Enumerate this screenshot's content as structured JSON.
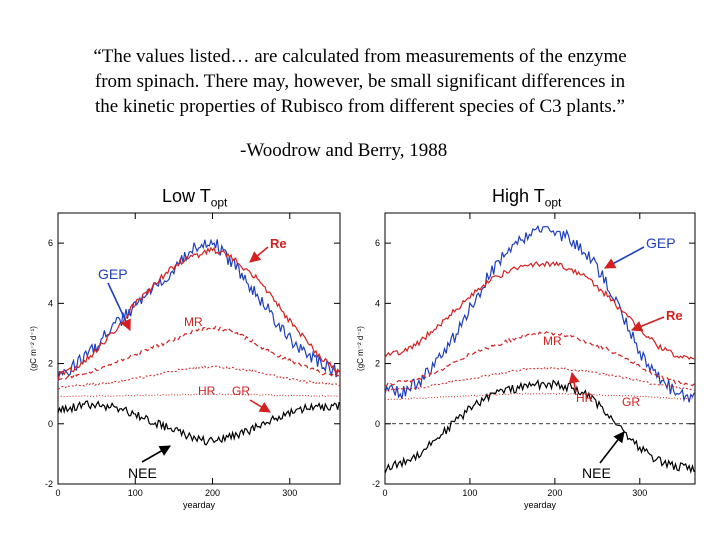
{
  "quote": {
    "lines": [
      "“The values listed… are calculated from measurements of the enzyme",
      "from spinach.  There may, however, be small significant differences in",
      "the kinetic properties of Rubisco from different species of C3 plants.”"
    ],
    "attribution": "-Woodrow and Berry, 1988"
  },
  "colors": {
    "gep": "#1f3fbf",
    "re": "#d42020",
    "mr": "#d42020",
    "nee": "#000000",
    "arrow": "#d42020"
  },
  "chart_data": [
    {
      "type": "line",
      "title_main": "Low T",
      "title_sub": "opt",
      "xlabel": "yearday",
      "ylabel": "(gC m⁻² d⁻¹)",
      "xlim": [
        0,
        365
      ],
      "ylim": [
        -2,
        7
      ],
      "xticks": [
        "0",
        "100",
        "200",
        "300"
      ],
      "yticks": [
        "-2",
        "0",
        "2",
        "4",
        "6"
      ],
      "series": [
        {
          "name": "GEP",
          "style": "gep",
          "x": [
            0,
            20,
            40,
            60,
            80,
            100,
            120,
            140,
            160,
            180,
            200,
            220,
            240,
            260,
            280,
            300,
            320,
            340,
            360
          ],
          "values": [
            1.6,
            1.9,
            2.3,
            2.9,
            3.4,
            3.9,
            4.4,
            4.9,
            5.5,
            5.9,
            6.1,
            5.5,
            4.9,
            4.2,
            3.5,
            2.8,
            2.3,
            2.0,
            1.7
          ]
        },
        {
          "name": "Re",
          "style": "re",
          "x": [
            0,
            20,
            40,
            60,
            80,
            100,
            120,
            140,
            160,
            180,
            200,
            220,
            240,
            260,
            280,
            300,
            320,
            340,
            360
          ],
          "values": [
            1.6,
            1.8,
            2.2,
            2.7,
            3.3,
            4.0,
            4.5,
            5.0,
            5.4,
            5.6,
            5.8,
            5.6,
            5.2,
            4.8,
            4.1,
            3.4,
            2.8,
            2.2,
            1.8
          ]
        },
        {
          "name": "MR",
          "style": "mr",
          "x": [
            0,
            20,
            40,
            60,
            80,
            100,
            120,
            140,
            160,
            180,
            200,
            220,
            240,
            260,
            280,
            300,
            320,
            340,
            360
          ],
          "values": [
            1.5,
            1.6,
            1.7,
            1.9,
            2.1,
            2.3,
            2.5,
            2.7,
            2.9,
            3.1,
            3.2,
            3.1,
            2.9,
            2.6,
            2.3,
            2.1,
            1.9,
            1.7,
            1.6
          ]
        },
        {
          "name": "GR",
          "style": "gr",
          "x": [
            0,
            40,
            80,
            120,
            160,
            200,
            240,
            280,
            320,
            360
          ],
          "values": [
            1.2,
            1.3,
            1.4,
            1.6,
            1.8,
            1.9,
            1.8,
            1.6,
            1.4,
            1.3
          ]
        },
        {
          "name": "HR",
          "style": "hr",
          "x": [
            0,
            40,
            80,
            120,
            160,
            200,
            240,
            280,
            320,
            360
          ],
          "values": [
            0.9,
            0.92,
            0.93,
            0.95,
            0.97,
            0.98,
            0.97,
            0.95,
            0.93,
            0.92
          ]
        },
        {
          "name": "NEE",
          "style": "nee",
          "x": [
            0,
            20,
            40,
            60,
            80,
            100,
            120,
            140,
            160,
            180,
            200,
            220,
            240,
            260,
            280,
            300,
            320,
            340,
            360
          ],
          "values": [
            0.5,
            0.55,
            0.65,
            0.6,
            0.5,
            0.3,
            0.1,
            -0.1,
            -0.3,
            -0.5,
            -0.6,
            -0.4,
            -0.3,
            -0.1,
            0.2,
            0.4,
            0.5,
            0.55,
            0.6
          ]
        }
      ],
      "labels": {
        "re": "Re",
        "gep": "GEP",
        "mr": "MR",
        "hr": "HR",
        "gr": "GR",
        "nee": "NEE"
      }
    },
    {
      "type": "line",
      "title_main": "High T",
      "title_sub": "opt",
      "xlabel": "yearday",
      "ylabel": "(gC m⁻² d⁻¹)",
      "xlim": [
        0,
        365
      ],
      "ylim": [
        -2,
        7
      ],
      "xticks": [
        "0",
        "100",
        "200",
        "300"
      ],
      "yticks": [
        "-2",
        "0",
        "2",
        "4",
        "6"
      ],
      "series": [
        {
          "name": "GEP",
          "style": "gep",
          "x": [
            0,
            20,
            40,
            60,
            80,
            100,
            120,
            140,
            160,
            180,
            200,
            220,
            240,
            260,
            280,
            300,
            320,
            340,
            360
          ],
          "values": [
            1.2,
            1.0,
            1.4,
            2.0,
            2.8,
            3.8,
            4.8,
            5.6,
            6.1,
            6.4,
            6.4,
            6.1,
            5.6,
            4.7,
            3.6,
            2.4,
            1.6,
            1.1,
            0.9
          ]
        },
        {
          "name": "Re",
          "style": "re",
          "x": [
            0,
            20,
            40,
            60,
            80,
            100,
            120,
            140,
            160,
            180,
            200,
            220,
            240,
            260,
            280,
            300,
            320,
            340,
            360
          ],
          "values": [
            2.3,
            2.4,
            2.7,
            3.2,
            3.7,
            4.2,
            4.7,
            5.0,
            5.2,
            5.3,
            5.3,
            5.1,
            4.8,
            4.3,
            3.7,
            3.2,
            2.6,
            2.3,
            2.2
          ]
        },
        {
          "name": "MR",
          "style": "mr",
          "x": [
            0,
            20,
            40,
            60,
            80,
            100,
            120,
            140,
            160,
            180,
            200,
            220,
            240,
            260,
            280,
            300,
            320,
            340,
            360
          ],
          "values": [
            1.3,
            1.4,
            1.5,
            1.7,
            2.0,
            2.3,
            2.5,
            2.7,
            2.9,
            3.0,
            3.0,
            2.9,
            2.7,
            2.5,
            2.2,
            1.9,
            1.6,
            1.4,
            1.3
          ]
        },
        {
          "name": "GR",
          "style": "gr",
          "x": [
            0,
            40,
            80,
            120,
            160,
            200,
            240,
            280,
            320,
            360
          ],
          "values": [
            1.1,
            1.2,
            1.4,
            1.6,
            1.8,
            1.85,
            1.75,
            1.55,
            1.3,
            1.15
          ]
        },
        {
          "name": "HR",
          "style": "hr",
          "x": [
            0,
            40,
            80,
            120,
            160,
            200,
            240,
            280,
            320,
            360
          ],
          "values": [
            0.8,
            0.85,
            0.9,
            0.95,
            1.0,
            1.0,
            0.97,
            0.93,
            0.88,
            0.82
          ]
        },
        {
          "name": "NEE",
          "style": "nee",
          "x": [
            0,
            20,
            40,
            60,
            80,
            100,
            120,
            140,
            160,
            180,
            200,
            220,
            240,
            260,
            280,
            300,
            320,
            340,
            360
          ],
          "values": [
            -1.5,
            -1.3,
            -1.0,
            -0.5,
            0.0,
            0.5,
            0.9,
            1.1,
            1.2,
            1.3,
            1.3,
            1.2,
            0.9,
            0.4,
            -0.2,
            -0.8,
            -1.2,
            -1.4,
            -1.5
          ]
        }
      ],
      "zero_line": true,
      "labels": {
        "re": "Re",
        "gep": "GEP",
        "mr": "MR",
        "hr": "HR",
        "gr": "GR",
        "nee": "NEE"
      }
    }
  ]
}
